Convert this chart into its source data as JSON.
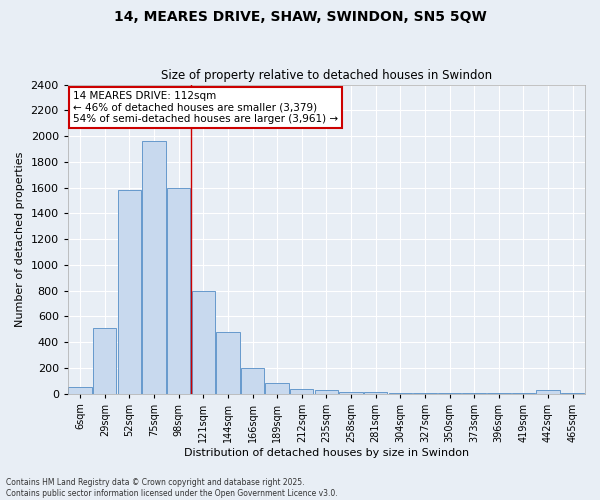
{
  "title": "14, MEARES DRIVE, SHAW, SWINDON, SN5 5QW",
  "subtitle": "Size of property relative to detached houses in Swindon",
  "xlabel": "Distribution of detached houses by size in Swindon",
  "ylabel": "Number of detached properties",
  "bar_labels": [
    "6sqm",
    "29sqm",
    "52sqm",
    "75sqm",
    "98sqm",
    "121sqm",
    "144sqm",
    "166sqm",
    "189sqm",
    "212sqm",
    "235sqm",
    "258sqm",
    "281sqm",
    "304sqm",
    "327sqm",
    "350sqm",
    "373sqm",
    "396sqm",
    "419sqm",
    "442sqm",
    "465sqm"
  ],
  "bar_values": [
    50,
    510,
    1580,
    1960,
    1600,
    800,
    480,
    200,
    80,
    35,
    25,
    15,
    10,
    5,
    3,
    2,
    1,
    1,
    1,
    25,
    1
  ],
  "bar_color": "#c8d9ee",
  "bar_edge_color": "#6699cc",
  "background_color": "#e8eef5",
  "grid_color": "#ffffff",
  "vline_index": 4,
  "vline_color": "#cc0000",
  "annotation_title": "14 MEARES DRIVE: 112sqm",
  "annotation_line1": "← 46% of detached houses are smaller (3,379)",
  "annotation_line2": "54% of semi-detached houses are larger (3,961) →",
  "annotation_box_facecolor": "#ffffff",
  "annotation_box_edgecolor": "#cc0000",
  "ylim": [
    0,
    2400
  ],
  "yticks": [
    0,
    200,
    400,
    600,
    800,
    1000,
    1200,
    1400,
    1600,
    1800,
    2000,
    2200,
    2400
  ],
  "footer1": "Contains HM Land Registry data © Crown copyright and database right 2025.",
  "footer2": "Contains public sector information licensed under the Open Government Licence v3.0."
}
